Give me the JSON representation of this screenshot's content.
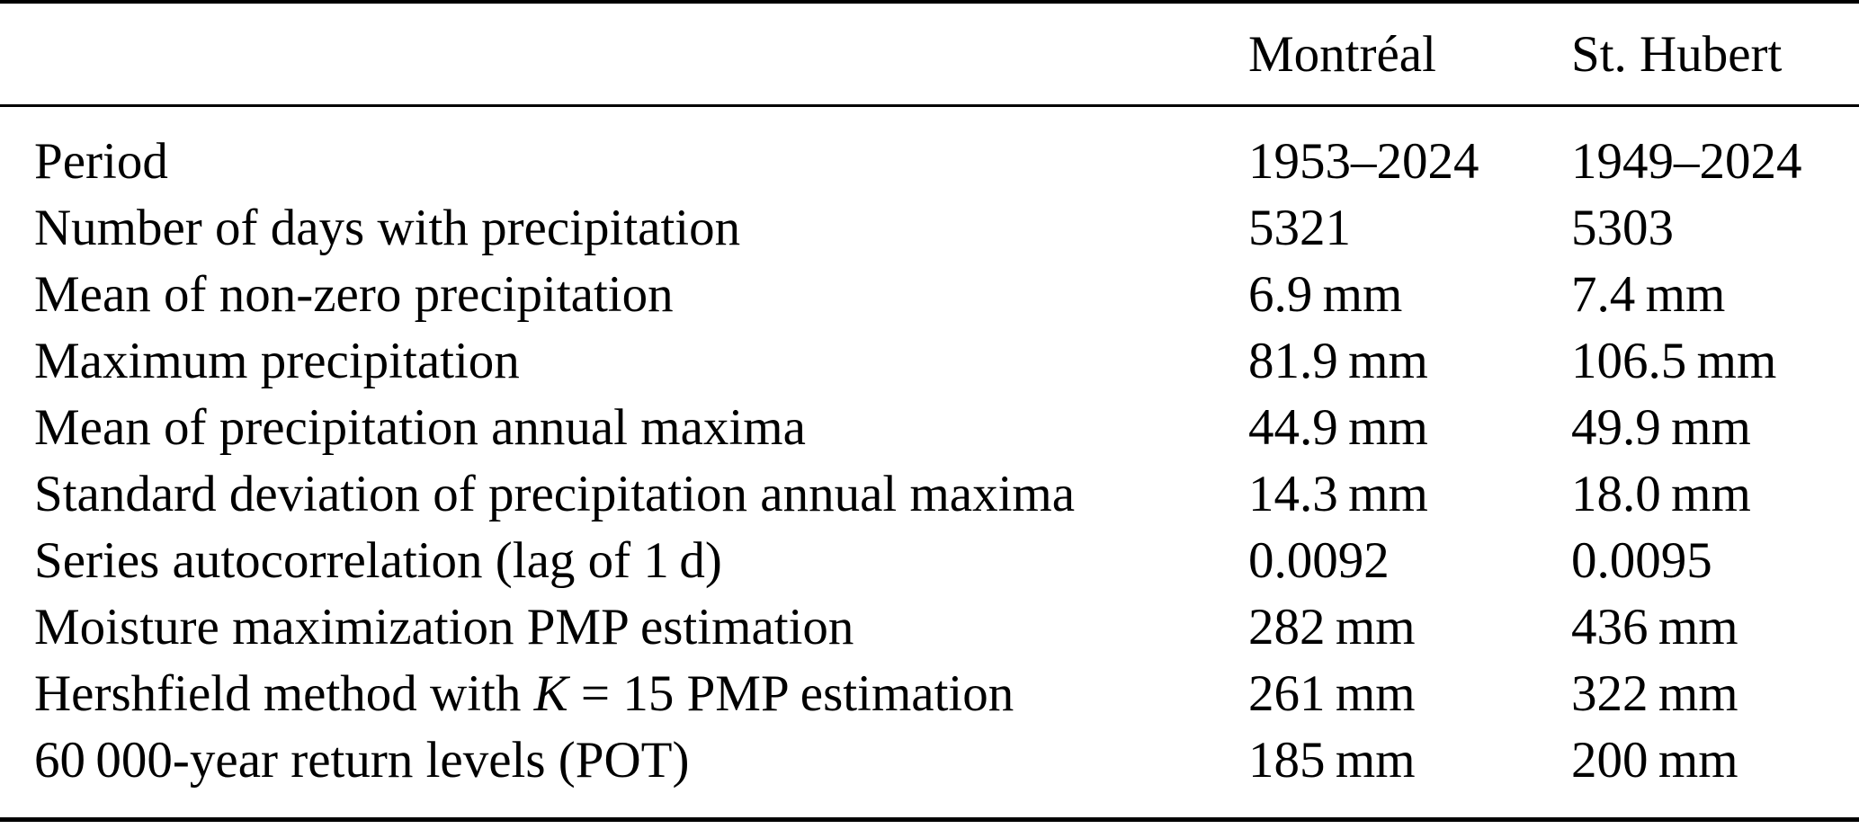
{
  "colors": {
    "text": "#000000",
    "rule": "#000000",
    "background": "#ffffff"
  },
  "table": {
    "columns": [
      "",
      "Montréal",
      "St. Hubert"
    ],
    "rows": [
      {
        "label": [
          {
            "t": "Period"
          }
        ],
        "montreal": "1953–2024",
        "st_hubert": "1949–2024"
      },
      {
        "label": [
          {
            "t": "Number of days with precipitation"
          }
        ],
        "montreal": "5321",
        "st_hubert": "5303"
      },
      {
        "label": [
          {
            "t": "Mean of non-zero precipitation"
          }
        ],
        "montreal": "6.9 mm",
        "st_hubert": "7.4 mm"
      },
      {
        "label": [
          {
            "t": "Maximum precipitation"
          }
        ],
        "montreal": "81.9 mm",
        "st_hubert": "106.5 mm"
      },
      {
        "label": [
          {
            "t": "Mean of precipitation annual maxima"
          }
        ],
        "montreal": "44.9 mm",
        "st_hubert": "49.9 mm"
      },
      {
        "label": [
          {
            "t": "Standard deviation of precipitation annual maxima"
          }
        ],
        "montreal": "14.3 mm",
        "st_hubert": "18.0 mm"
      },
      {
        "label": [
          {
            "t": "Series autocorrelation (lag of 1 d)"
          }
        ],
        "montreal": "0.0092",
        "st_hubert": "0.0095"
      },
      {
        "label": [
          {
            "t": "Moisture maximization PMP estimation"
          }
        ],
        "montreal": "282 mm",
        "st_hubert": "436 mm"
      },
      {
        "label": [
          {
            "t": "Hershfield method with "
          },
          {
            "t": "K",
            "i": true
          },
          {
            "t": " = 15 PMP estimation"
          }
        ],
        "montreal": "261 mm",
        "st_hubert": "322 mm"
      },
      {
        "label": [
          {
            "t": "60 000-year return levels (POT)"
          }
        ],
        "montreal": "185 mm",
        "st_hubert": "200 mm"
      }
    ]
  }
}
